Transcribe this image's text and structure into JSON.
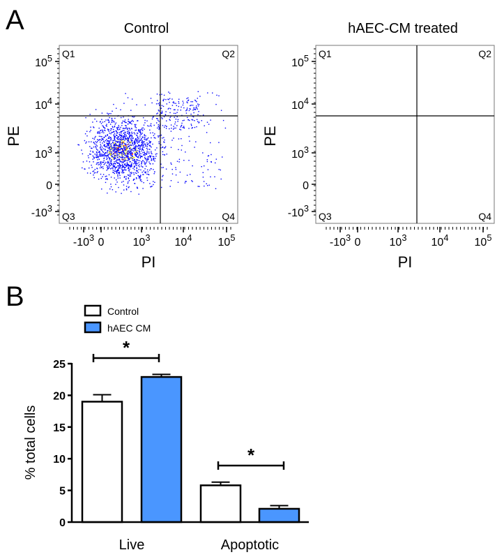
{
  "panels": {
    "a": "A",
    "b": "B"
  },
  "chart_data": [
    {
      "type": "scatter",
      "title": "Control",
      "xlabel": "PI",
      "ylabel": "PE",
      "x_ticks": [
        {
          "base": "-10",
          "exp": "3"
        },
        {
          "base": "0",
          "exp": ""
        },
        {
          "base": "10",
          "exp": "3"
        },
        {
          "base": "10",
          "exp": "4"
        },
        {
          "base": "10",
          "exp": "5"
        }
      ],
      "y_ticks": [
        {
          "base": "10",
          "exp": "5"
        },
        {
          "base": "10",
          "exp": "4"
        },
        {
          "base": "10",
          "exp": "3"
        },
        {
          "base": "0",
          "exp": ""
        },
        {
          "base": "-10",
          "exp": "3"
        }
      ],
      "scale": "biexponential",
      "quadrants": [
        "Q1",
        "Q2",
        "Q3",
        "Q4"
      ],
      "colors": {
        "low": "#0000ff",
        "mid": "#e8e800",
        "high": "#ff2000"
      }
    },
    {
      "type": "scatter",
      "title": "hAEC-CM treated",
      "xlabel": "PI",
      "ylabel": "PE",
      "x_ticks": [
        {
          "base": "-10",
          "exp": "3"
        },
        {
          "base": "0",
          "exp": ""
        },
        {
          "base": "10",
          "exp": "3"
        },
        {
          "base": "10",
          "exp": "4"
        },
        {
          "base": "10",
          "exp": "5"
        }
      ],
      "y_ticks": [
        {
          "base": "10",
          "exp": "5"
        },
        {
          "base": "10",
          "exp": "4"
        },
        {
          "base": "10",
          "exp": "3"
        },
        {
          "base": "0",
          "exp": ""
        },
        {
          "base": "-10",
          "exp": "3"
        }
      ],
      "scale": "biexponential",
      "quadrants": [
        "Q1",
        "Q2",
        "Q3",
        "Q4"
      ],
      "colors": {
        "low": "#0000ff",
        "mid": "#e8e800",
        "high": "#ff2000"
      }
    },
    {
      "type": "bar",
      "categories": [
        "Live",
        "Apoptotic"
      ],
      "series": [
        {
          "name": "Control",
          "values": [
            19.0,
            5.8
          ],
          "errors": [
            1.1,
            0.5
          ],
          "color": "#ffffff"
        },
        {
          "name": "hAEC CM",
          "values": [
            22.9,
            2.1
          ],
          "errors": [
            0.4,
            0.5
          ],
          "color": "#4a96ff"
        }
      ],
      "ylabel": "% total cells",
      "xlabel": "",
      "ylim": [
        0,
        25
      ],
      "yticks": [
        "0",
        "5",
        "10",
        "15",
        "20",
        "25"
      ],
      "significance": [
        {
          "category": "Live",
          "label": "*"
        },
        {
          "category": "Apoptotic",
          "label": "*"
        }
      ],
      "legend": "top-left"
    }
  ]
}
